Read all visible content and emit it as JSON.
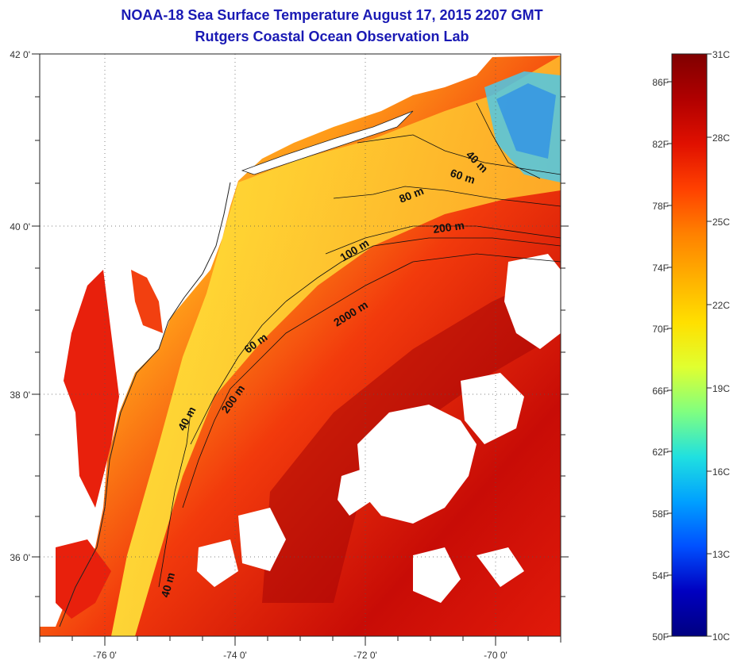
{
  "header": {
    "title": "NOAA-18 Sea Surface Temperature August 17, 2015 2207 GMT",
    "subtitle": "Rutgers Coastal Ocean Observation Lab"
  },
  "map": {
    "longitude_ticks": [
      "-76 0'",
      "-74 0'",
      "-72 0'",
      "-70 0'"
    ],
    "latitude_ticks": [
      "42 0'",
      "40 0'",
      "38 0'",
      "36 0'"
    ],
    "contour_labels": [
      "40 m",
      "60 m",
      "80 m",
      "200 m",
      "100 m",
      "2000 m",
      "60 m",
      "200 m",
      "40 m",
      "40 m"
    ]
  },
  "colorbar": {
    "celsius_labels": [
      "31C",
      "28C",
      "25C",
      "22C",
      "19C",
      "16C",
      "13C",
      "10C"
    ],
    "fahrenheit_labels": [
      "86F",
      "82F",
      "78F",
      "74F",
      "70F",
      "66F",
      "62F",
      "58F",
      "54F",
      "50F"
    ],
    "colors": [
      "#800000",
      "#b00000",
      "#e01000",
      "#ff4000",
      "#ff8000",
      "#ffb000",
      "#ffe000",
      "#e0ff30",
      "#80ff80",
      "#20e0e0",
      "#00a0ff",
      "#0050ff",
      "#0000c0",
      "#000080"
    ]
  }
}
